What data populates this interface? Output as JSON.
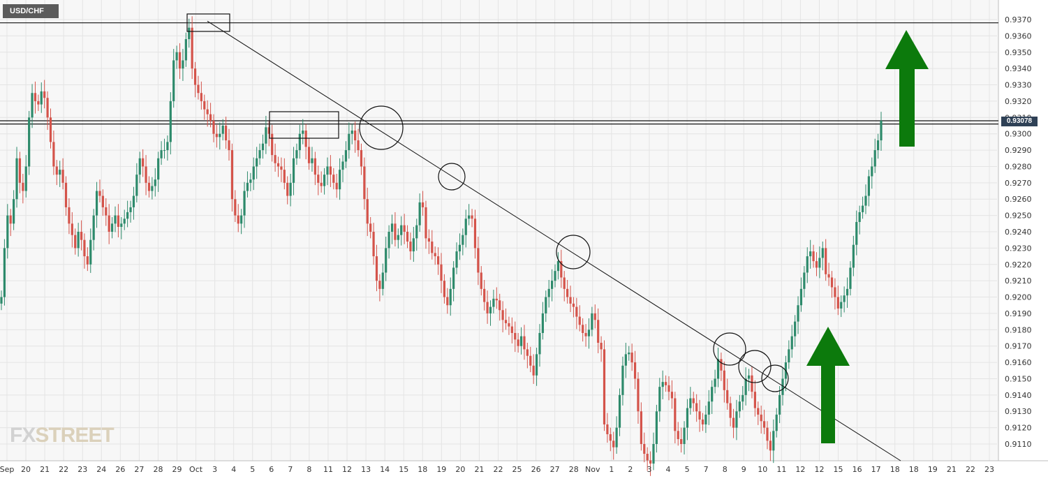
{
  "symbol": "USD/CHF",
  "last_price": "0.93078",
  "logo": {
    "part1": "FX",
    "part2": "STREET"
  },
  "chart_data": {
    "type": "candlestick",
    "title": "USD/CHF",
    "xlabel": "",
    "ylabel": "",
    "ylim": [
      0.91,
      0.9375
    ],
    "grid": true,
    "y_ticks": [
      "0.9370",
      "0.9360",
      "0.9350",
      "0.9340",
      "0.9330",
      "0.9320",
      "0.9310",
      "0.9300",
      "0.9290",
      "0.9280",
      "0.9270",
      "0.9260",
      "0.9250",
      "0.9240",
      "0.9230",
      "0.9220",
      "0.9210",
      "0.9200",
      "0.9190",
      "0.9180",
      "0.9170",
      "0.9160",
      "0.9150",
      "0.9140",
      "0.9130",
      "0.9120",
      "0.9110"
    ],
    "x_ticks": [
      "Sep",
      "20",
      "21",
      "22",
      "23",
      "24",
      "26",
      "27",
      "28",
      "29",
      "Oct",
      "3",
      "4",
      "5",
      "6",
      "7",
      "8",
      "11",
      "12",
      "13",
      "14",
      "15",
      "18",
      "19",
      "20",
      "21",
      "22",
      "25",
      "26",
      "27",
      "28",
      "Nov",
      "1",
      "2",
      "3",
      "4",
      "5",
      "7",
      "8",
      "9",
      "10",
      "11",
      "12",
      "12",
      "15",
      "16",
      "17",
      "18",
      "18",
      "19",
      "21",
      "22",
      "23"
    ],
    "closes": [
      0.92,
      0.923,
      0.925,
      0.9245,
      0.926,
      0.9285,
      0.927,
      0.9265,
      0.928,
      0.931,
      0.9325,
      0.932,
      0.9318,
      0.9326,
      0.9322,
      0.931,
      0.9295,
      0.928,
      0.9275,
      0.9278,
      0.927,
      0.9255,
      0.9245,
      0.9238,
      0.923,
      0.924,
      0.9235,
      0.9225,
      0.922,
      0.9235,
      0.925,
      0.9265,
      0.9262,
      0.9255,
      0.925,
      0.924,
      0.9245,
      0.925,
      0.9243,
      0.9245,
      0.9248,
      0.9252,
      0.9255,
      0.9262,
      0.9275,
      0.9285,
      0.928,
      0.927,
      0.9265,
      0.9268,
      0.9272,
      0.9285,
      0.929,
      0.929,
      0.9295,
      0.932,
      0.9345,
      0.935,
      0.934,
      0.9345,
      0.9358,
      0.9365,
      0.934,
      0.933,
      0.9325,
      0.932,
      0.9315,
      0.9312,
      0.9308,
      0.93,
      0.9298,
      0.93,
      0.9305,
      0.9296,
      0.929,
      0.926,
      0.925,
      0.9245,
      0.925,
      0.9265,
      0.927,
      0.9272,
      0.928,
      0.9285,
      0.929,
      0.9294,
      0.9304,
      0.93,
      0.9287,
      0.9282,
      0.928,
      0.9278,
      0.927,
      0.9262,
      0.927,
      0.9285,
      0.929,
      0.93,
      0.9302,
      0.9292,
      0.9282,
      0.9285,
      0.9275,
      0.927,
      0.9268,
      0.9275,
      0.928,
      0.9275,
      0.927,
      0.9266,
      0.9278,
      0.9283,
      0.929,
      0.93,
      0.9302,
      0.9296,
      0.929,
      0.928,
      0.926,
      0.9245,
      0.924,
      0.9225,
      0.921,
      0.9205,
      0.9215,
      0.923,
      0.924,
      0.9245,
      0.9235,
      0.9238,
      0.9244,
      0.924,
      0.9234,
      0.9228,
      0.9236,
      0.9244,
      0.9258,
      0.9255,
      0.9236,
      0.9234,
      0.9227,
      0.9225,
      0.922,
      0.921,
      0.92,
      0.9195,
      0.9205,
      0.9218,
      0.9228,
      0.9232,
      0.9238,
      0.9248,
      0.925,
      0.9248,
      0.923,
      0.9215,
      0.9205,
      0.9197,
      0.919,
      0.9194,
      0.9199,
      0.9198,
      0.9192,
      0.9186,
      0.9184,
      0.9182,
      0.9178,
      0.9174,
      0.917,
      0.9176,
      0.9168,
      0.9164,
      0.9158,
      0.9152,
      0.9165,
      0.9178,
      0.919,
      0.92,
      0.9205,
      0.921,
      0.9216,
      0.9222,
      0.9212,
      0.9205,
      0.92,
      0.9196,
      0.9194,
      0.9188,
      0.9183,
      0.9178,
      0.9176,
      0.918,
      0.919,
      0.9186,
      0.9172,
      0.9168,
      0.9122,
      0.9116,
      0.9112,
      0.9108,
      0.912,
      0.914,
      0.9158,
      0.9165,
      0.9166,
      0.916,
      0.915,
      0.913,
      0.911,
      0.9104,
      0.91,
      0.9098,
      0.911,
      0.913,
      0.9145,
      0.9148,
      0.9146,
      0.9142,
      0.9138,
      0.9118,
      0.9113,
      0.911,
      0.912,
      0.9132,
      0.9138,
      0.9135,
      0.913,
      0.9125,
      0.9122,
      0.9128,
      0.9136,
      0.9145,
      0.915,
      0.9162,
      0.9155,
      0.9143,
      0.9135,
      0.9126,
      0.912,
      0.913,
      0.9136,
      0.914,
      0.915,
      0.9152,
      0.9142,
      0.9132,
      0.9128,
      0.9124,
      0.912,
      0.9112,
      0.9106,
      0.9118,
      0.9128,
      0.914,
      0.915,
      0.916,
      0.9168,
      0.9176,
      0.9185,
      0.9195,
      0.9205,
      0.9215,
      0.9225,
      0.9228,
      0.9222,
      0.9218,
      0.9224,
      0.923,
      0.9214,
      0.9212,
      0.9206,
      0.92,
      0.9193,
      0.9197,
      0.9201,
      0.9205,
      0.9218,
      0.9232,
      0.9246,
      0.9252,
      0.9256,
      0.9262,
      0.9274,
      0.928,
      0.929,
      0.9296,
      0.9308
    ],
    "resistance_lines": [
      0.9368,
      0.9308,
      0.9306
    ],
    "trendline": {
      "start": [
        0.937
      ],
      "end": [
        0.9098
      ]
    }
  }
}
